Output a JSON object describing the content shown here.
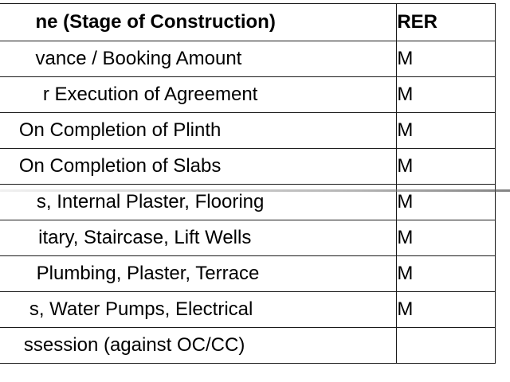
{
  "table": {
    "headers": {
      "stage": "ne (Stage of Construction)",
      "rera": "RER"
    },
    "rows": [
      {
        "stage": "vance / Booking Amount",
        "rera": "M"
      },
      {
        "stage": "r Execution of Agreement",
        "rera": "M"
      },
      {
        "stage": "On Completion of Plinth",
        "rera": "M"
      },
      {
        "stage": "On Completion of Slabs",
        "rera": "M"
      },
      {
        "stage": "s, Internal Plaster, Flooring",
        "rera": "M"
      },
      {
        "stage": "itary, Staircase, Lift Wells",
        "rera": "M"
      },
      {
        "stage": "Plumbing, Plaster, Terrace",
        "rera": "M"
      },
      {
        "stage": "s, Water Pumps, Electrical",
        "rera": "M"
      },
      {
        "stage": "ssession (against OC/CC)",
        "rera": ""
      }
    ]
  }
}
